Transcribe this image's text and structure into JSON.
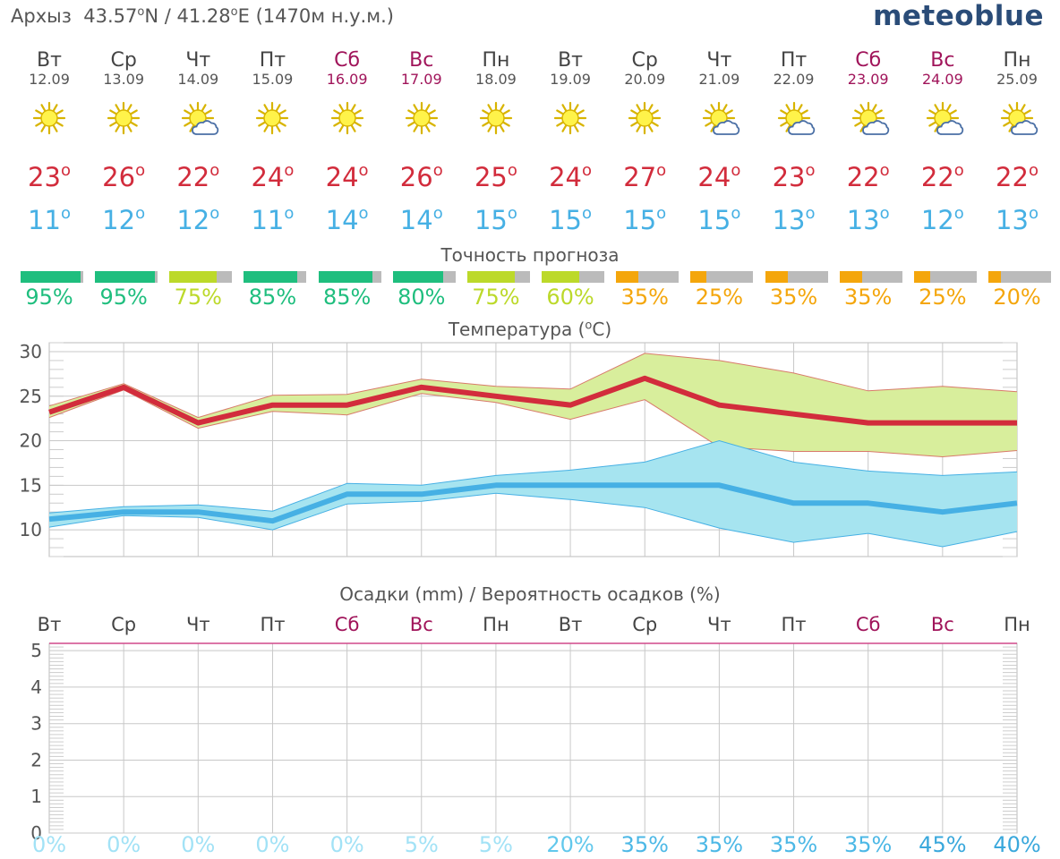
{
  "header": {
    "location": "Архыз",
    "lat": "43.57",
    "lat_suffix": "N",
    "lon_sep": "/",
    "lon": "41.28",
    "lon_suffix": "E",
    "elevation": "(1470м н.у.м.)",
    "degree_symbol": "o"
  },
  "brand": "meteoblue",
  "days": [
    {
      "name": "Вт",
      "date": "12.09",
      "weekend": false,
      "icon": "sun-icon",
      "tmax": "23",
      "tmin": "11",
      "accuracy": 95,
      "accuracy_label": "95%",
      "accuracy_color": "#1fbe7e"
    },
    {
      "name": "Ср",
      "date": "13.09",
      "weekend": false,
      "icon": "sun-icon",
      "tmax": "26",
      "tmin": "12",
      "accuracy": 95,
      "accuracy_label": "95%",
      "accuracy_color": "#1fbe7e"
    },
    {
      "name": "Чт",
      "date": "14.09",
      "weekend": false,
      "icon": "sun-cloud-icon",
      "tmax": "22",
      "tmin": "12",
      "accuracy": 75,
      "accuracy_label": "75%",
      "accuracy_color": "#bcd92a"
    },
    {
      "name": "Пт",
      "date": "15.09",
      "weekend": false,
      "icon": "sun-icon",
      "tmax": "24",
      "tmin": "11",
      "accuracy": 85,
      "accuracy_label": "85%",
      "accuracy_color": "#1fbe7e"
    },
    {
      "name": "Сб",
      "date": "16.09",
      "weekend": true,
      "icon": "sun-icon",
      "tmax": "24",
      "tmin": "14",
      "accuracy": 85,
      "accuracy_label": "85%",
      "accuracy_color": "#1fbe7e"
    },
    {
      "name": "Вс",
      "date": "17.09",
      "weekend": true,
      "icon": "sun-icon",
      "tmax": "26",
      "tmin": "14",
      "accuracy": 80,
      "accuracy_label": "80%",
      "accuracy_color": "#1fbe7e"
    },
    {
      "name": "Пн",
      "date": "18.09",
      "weekend": false,
      "icon": "sun-icon",
      "tmax": "25",
      "tmin": "15",
      "accuracy": 75,
      "accuracy_label": "75%",
      "accuracy_color": "#bcd92a"
    },
    {
      "name": "Вт",
      "date": "19.09",
      "weekend": false,
      "icon": "sun-icon",
      "tmax": "24",
      "tmin": "15",
      "accuracy": 60,
      "accuracy_label": "60%",
      "accuracy_color": "#bcd92a"
    },
    {
      "name": "Ср",
      "date": "20.09",
      "weekend": false,
      "icon": "sun-icon",
      "tmax": "27",
      "tmin": "15",
      "accuracy": 35,
      "accuracy_label": "35%",
      "accuracy_color": "#f4a60c"
    },
    {
      "name": "Чт",
      "date": "21.09",
      "weekend": false,
      "icon": "sun-cloud-icon",
      "tmax": "24",
      "tmin": "15",
      "accuracy": 25,
      "accuracy_label": "25%",
      "accuracy_color": "#f4a60c"
    },
    {
      "name": "Пт",
      "date": "22.09",
      "weekend": false,
      "icon": "sun-cloud-icon",
      "tmax": "23",
      "tmin": "13",
      "accuracy": 35,
      "accuracy_label": "35%",
      "accuracy_color": "#f4a60c"
    },
    {
      "name": "Сб",
      "date": "23.09",
      "weekend": true,
      "icon": "sun-cloud-icon",
      "tmax": "22",
      "tmin": "13",
      "accuracy": 35,
      "accuracy_label": "35%",
      "accuracy_color": "#f4a60c"
    },
    {
      "name": "Вс",
      "date": "24.09",
      "weekend": true,
      "icon": "sun-cloud-icon",
      "tmax": "22",
      "tmin": "12",
      "accuracy": 25,
      "accuracy_label": "25%",
      "accuracy_color": "#f4a60c"
    },
    {
      "name": "Пн",
      "date": "25.09",
      "weekend": false,
      "icon": "sun-cloud-icon",
      "tmax": "22",
      "tmin": "13",
      "accuracy": 20,
      "accuracy_label": "20%",
      "accuracy_color": "#f4a60c"
    }
  ],
  "accuracy_title": "Точность прогноза",
  "colors": {
    "tmax": "#d22c3c",
    "tmin": "#46b0e4",
    "weekend": "#a0145a",
    "max_band": "#d8ee9c",
    "min_band": "#a6e4f0",
    "precip_top_line": "#d0488a",
    "brand": "#2a4c78"
  },
  "chart_data": [
    {
      "type": "line",
      "title": "Температура",
      "title_unit": "(°C)",
      "ylim": [
        7,
        31
      ],
      "yticks": [
        10,
        15,
        20,
        25,
        30
      ],
      "grid": true,
      "categories": [
        "12.09",
        "13.09",
        "14.09",
        "15.09",
        "16.09",
        "17.09",
        "18.09",
        "19.09",
        "20.09",
        "21.09",
        "22.09",
        "23.09",
        "24.09",
        "25.09"
      ],
      "series": [
        {
          "values": [
            23.2,
            26.0,
            22.0,
            24.0,
            24.0,
            26.0,
            25.0,
            24.0,
            27.0,
            24.0,
            23.0,
            22.0,
            22.0,
            22.0
          ]
        },
        {
          "values": [
            23.9,
            26.4,
            22.6,
            25.1,
            25.2,
            26.9,
            26.1,
            25.8,
            29.8,
            29.0,
            27.6,
            25.6,
            26.1,
            25.5
          ]
        },
        {
          "values": [
            22.6,
            25.7,
            21.4,
            23.3,
            22.9,
            25.3,
            24.3,
            22.4,
            24.6,
            19.3,
            18.8,
            18.8,
            18.2,
            18.9
          ]
        },
        {
          "values": [
            11.2,
            12.0,
            12.0,
            11.0,
            14.0,
            14.0,
            15.0,
            15.0,
            15.0,
            15.0,
            13.0,
            13.0,
            12.0,
            13.0
          ]
        },
        {
          "values": [
            11.9,
            12.6,
            12.8,
            12.1,
            15.2,
            15.0,
            16.1,
            16.7,
            17.6,
            20.0,
            17.6,
            16.6,
            16.1,
            16.5
          ]
        },
        {
          "values": [
            10.3,
            11.6,
            11.4,
            10.0,
            12.9,
            13.2,
            14.1,
            13.4,
            12.5,
            10.2,
            8.6,
            9.6,
            8.1,
            9.8
          ]
        }
      ]
    },
    {
      "type": "bar",
      "title": "Осадки (mm) / Вероятность осадков (%)",
      "ylim": [
        0,
        5.2
      ],
      "yticks": [
        0,
        1,
        2,
        3,
        4,
        5
      ],
      "grid": true,
      "categories": [
        "Вт",
        "Ср",
        "Чт",
        "Пт",
        "Сб",
        "Вс",
        "Пн",
        "Вт",
        "Ср",
        "Чт",
        "Пт",
        "Сб",
        "Вс",
        "Пн"
      ],
      "weekend": [
        false,
        false,
        false,
        false,
        true,
        true,
        false,
        false,
        false,
        false,
        false,
        true,
        true,
        false
      ],
      "values": [
        0,
        0,
        0,
        0,
        0,
        0,
        0,
        0,
        0,
        0,
        0,
        0,
        0,
        0
      ],
      "probability": [
        {
          "label": "0%",
          "color": "#a2e2f6"
        },
        {
          "label": "0%",
          "color": "#a2e2f6"
        },
        {
          "label": "0%",
          "color": "#a2e2f6"
        },
        {
          "label": "0%",
          "color": "#a2e2f6"
        },
        {
          "label": "0%",
          "color": "#a2e2f6"
        },
        {
          "label": "5%",
          "color": "#a2e2f6"
        },
        {
          "label": "5%",
          "color": "#a2e2f6"
        },
        {
          "label": "20%",
          "color": "#62c8ec"
        },
        {
          "label": "35%",
          "color": "#4cb8e6"
        },
        {
          "label": "35%",
          "color": "#4cb8e6"
        },
        {
          "label": "35%",
          "color": "#4cb8e6"
        },
        {
          "label": "35%",
          "color": "#4cb8e6"
        },
        {
          "label": "45%",
          "color": "#3aa8dc"
        },
        {
          "label": "40%",
          "color": "#3aa8dc"
        }
      ]
    }
  ]
}
